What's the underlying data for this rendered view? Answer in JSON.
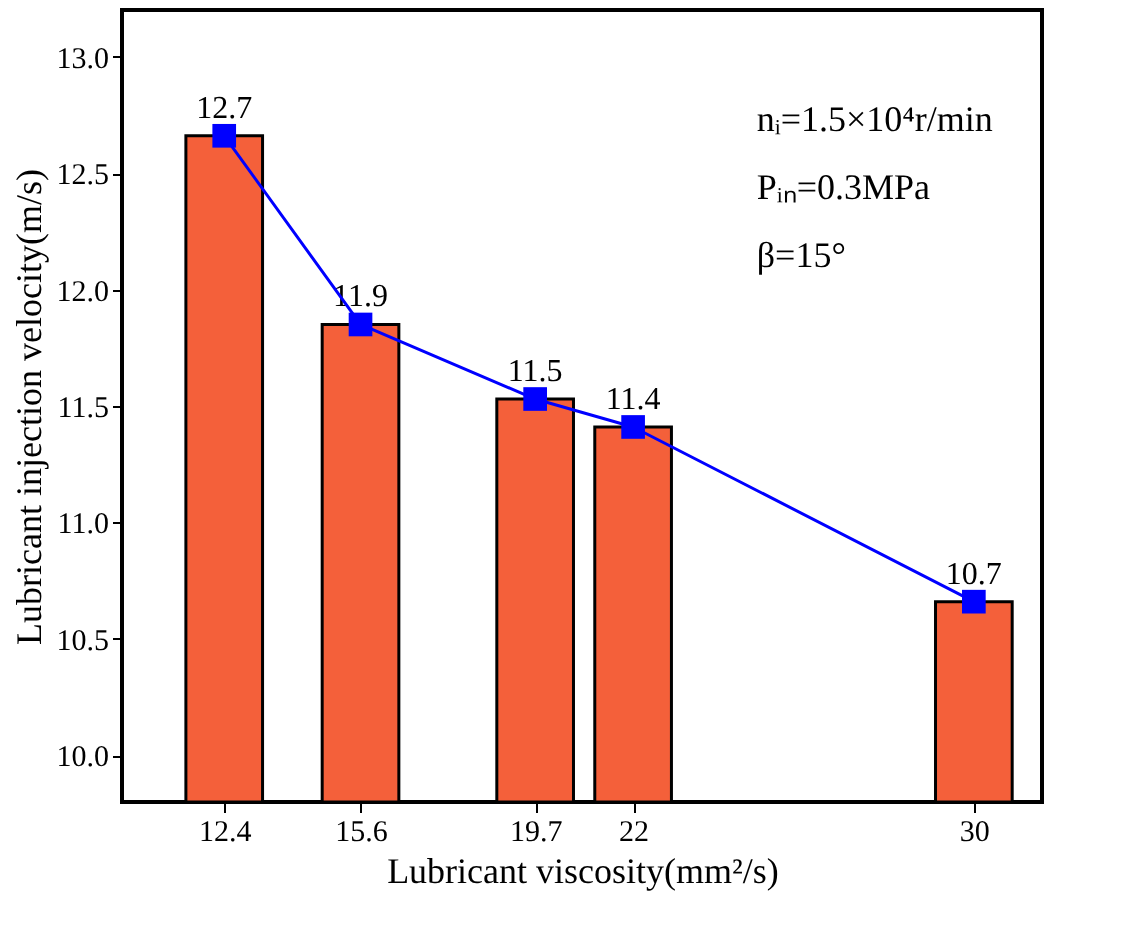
{
  "chart_data": {
    "type": "bar",
    "xlabel": "Lubricant viscosity(mm²/s)",
    "ylabel": "Lubricant injection velocity(m/s)",
    "x": [
      12.4,
      15.6,
      19.7,
      22,
      30
    ],
    "series": [
      {
        "color": "#f4603a",
        "values": [
          12.66,
          11.85,
          11.53,
          11.41,
          10.66
        ],
        "value_labels": [
          "12.7",
          "11.9",
          "11.5",
          "11.4",
          "10.7"
        ]
      },
      {
        "type": "line",
        "color": "#0000ff",
        "marker": "square",
        "values": [
          12.66,
          11.85,
          11.53,
          11.41,
          10.66
        ]
      }
    ],
    "xlim": [
      10,
      31.6
    ],
    "xticks": [
      12.4,
      15.6,
      19.7,
      22,
      30
    ],
    "ylim": [
      9.8,
      13.2
    ],
    "yticks": [
      {
        "value": 10,
        "label": "10.0"
      },
      10.5,
      {
        "value": 11,
        "label": "11.0"
      },
      11.5,
      {
        "value": 12,
        "label": "12.0"
      },
      12.5,
      {
        "value": 13,
        "label": "13.0"
      }
    ],
    "annotations": [
      "nᵢ=1.5×10⁴r/min",
      "Pᵢₙ=0.3MPa",
      "β=15°"
    ],
    "grid": false
  }
}
